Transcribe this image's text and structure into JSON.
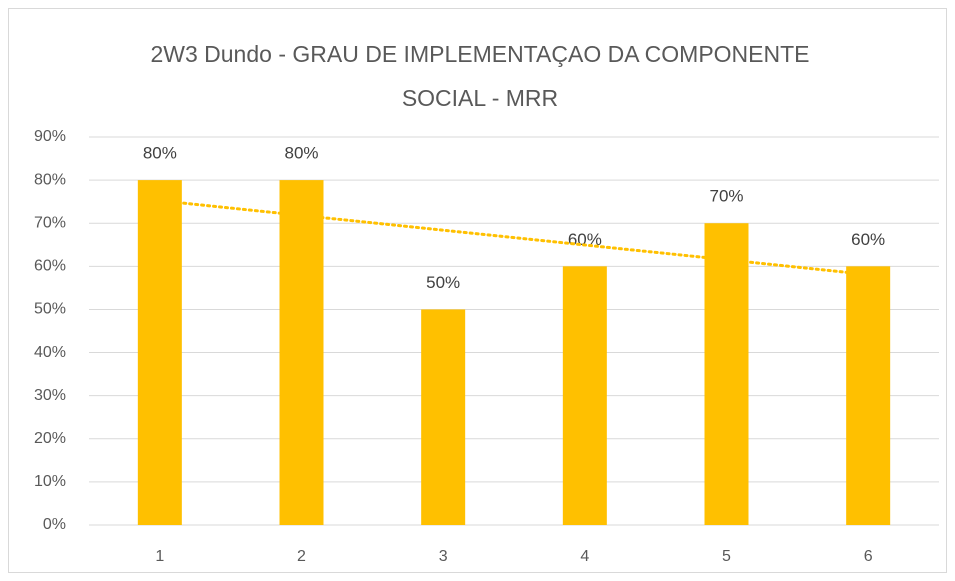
{
  "chart_data": {
    "type": "bar",
    "title": "2W3 Dundo - GRAU DE IMPLEMENTAÇAO DA COMPONENTE SOCIAL - MRR",
    "categories": [
      "1",
      "2",
      "3",
      "4",
      "5",
      "6"
    ],
    "values": [
      80,
      80,
      50,
      60,
      70,
      60
    ],
    "value_labels": [
      "80%",
      "80%",
      "50%",
      "60%",
      "70%",
      "60%"
    ],
    "color": "#ffc000",
    "trendline": "linear",
    "ylim": [
      0,
      90
    ],
    "yticks": [
      {
        "value": 0,
        "label": "0%"
      },
      {
        "value": 10,
        "label": "10%"
      },
      {
        "value": 20,
        "label": "20%"
      },
      {
        "value": 30,
        "label": "30%"
      },
      {
        "value": 40,
        "label": "40%"
      },
      {
        "value": 50,
        "label": "50%"
      },
      {
        "value": 60,
        "label": "60%"
      },
      {
        "value": 70,
        "label": "70%"
      },
      {
        "value": 80,
        "label": "80%"
      },
      {
        "value": 90,
        "label": "90%"
      }
    ],
    "grid": true
  }
}
